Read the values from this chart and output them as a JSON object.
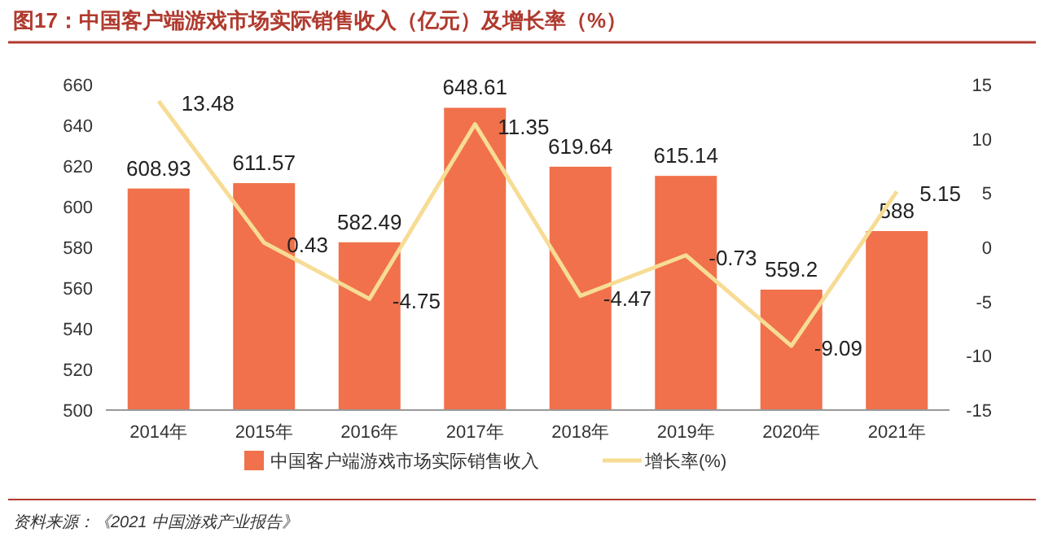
{
  "chart_data": {
    "type": "bar",
    "title": "图17：中国客户端游戏市场实际销售收入（亿元）及增长率（%）",
    "categories": [
      "2014年",
      "2015年",
      "2016年",
      "2017年",
      "2018年",
      "2019年",
      "2020年",
      "2021年"
    ],
    "series": [
      {
        "name": "中国客户端游戏市场实际销售收入",
        "color": "#f0714b",
        "values": [
          608.93,
          611.57,
          582.49,
          648.61,
          619.64,
          615.14,
          559.2,
          588
        ]
      },
      {
        "name": "增长率(%)",
        "type": "line",
        "axis": "y2",
        "color": "#f7dc95",
        "values": [
          13.48,
          0.43,
          -4.75,
          11.35,
          -4.47,
          -0.73,
          -9.09,
          5.15
        ]
      }
    ],
    "ylim": [
      500,
      660
    ],
    "yticks": [
      500,
      520,
      540,
      560,
      580,
      600,
      620,
      640,
      660
    ],
    "y2lim": [
      -15,
      15
    ],
    "y2ticks": [
      -15,
      -10,
      -5,
      0,
      5,
      10,
      15
    ],
    "data_labels": true,
    "legend": "bottom",
    "grid": false,
    "annotations": [
      "资料来源：《2021 中国游戏产业报告》"
    ]
  }
}
